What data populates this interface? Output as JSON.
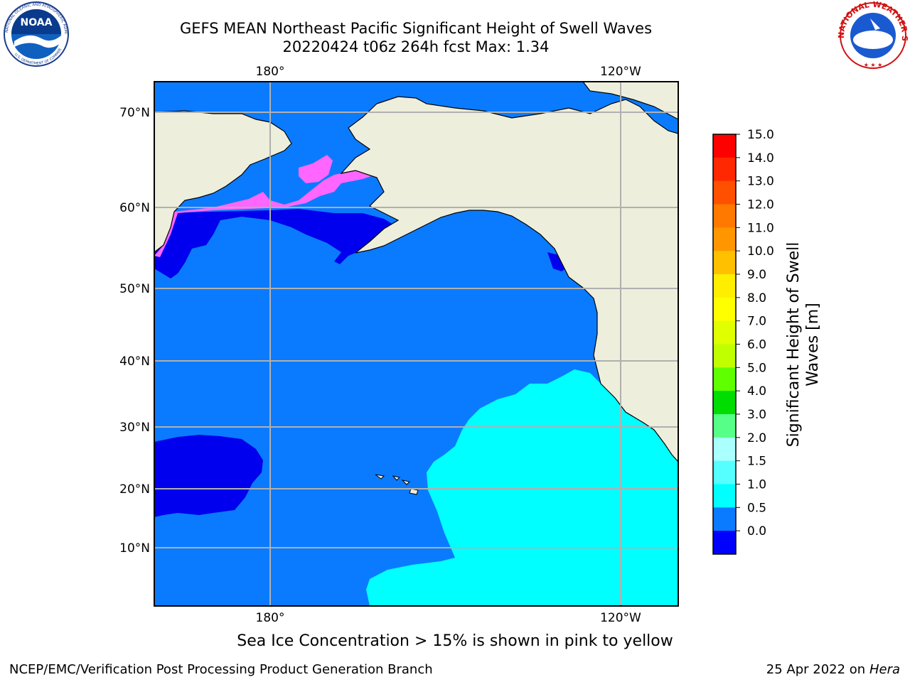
{
  "header": {
    "title_line1": "GEFS MEAN Northeast Pacific Significant Height of Swell Waves",
    "title_line2": "20220424 t06z 264h fcst   Max: 1.34"
  },
  "logos": {
    "left": "NOAA",
    "left_ring": "NATIONAL OCEANIC AND ATMOSPHERIC ADMINISTRATION",
    "left_ring_bottom": "U.S. DEPARTMENT OF COMMERCE",
    "right_ring": "NATIONAL WEATHER SERVICE"
  },
  "map": {
    "lon_labels_top": [
      "180°",
      "120°W"
    ],
    "lon_labels_bottom": [
      "180°",
      "120°W"
    ],
    "lat_labels": [
      "70°N",
      "60°N",
      "50°N",
      "40°N",
      "30°N",
      "20°N",
      "10°N"
    ],
    "colors": {
      "land": "#eeeedc",
      "ocean_0_5_1_0": "#0a7bff",
      "ocean_0_0_5": "#0000ee",
      "ocean_1_0_1_5": "#00ffff",
      "ice": "#ff66ff",
      "grid": "#b0b0b0"
    }
  },
  "colorbar": {
    "label_line1": "Significant Height of Swell",
    "label_line2": "Waves [m]",
    "ticks": [
      "15.0",
      "14.0",
      "13.0",
      "12.0",
      "11.0",
      "10.0",
      "9.0",
      "8.0",
      "7.0",
      "6.0",
      "5.0",
      "4.0",
      "3.0",
      "2.0",
      "1.5",
      "1.0",
      "0.5",
      "0.0"
    ],
    "colors": [
      "#ff0000",
      "#ff2800",
      "#ff5000",
      "#ff7800",
      "#ff9600",
      "#ffc000",
      "#ffee00",
      "#ffff00",
      "#e0ff00",
      "#c0ff00",
      "#60ff00",
      "#00dd00",
      "#55ff88",
      "#aaffff",
      "#55ffff",
      "#00ffff",
      "#0a7bff",
      "#0000ff"
    ]
  },
  "footer": {
    "ice_note": "Sea Ice Concentration > 15% is shown in pink to yellow",
    "credit_left": "NCEP/EMC/Verification Post Processing Product Generation Branch",
    "credit_date": "25 Apr 2022 on ",
    "credit_host": "Hera"
  }
}
